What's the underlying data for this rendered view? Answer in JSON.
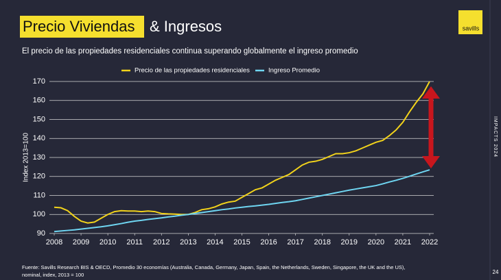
{
  "slide": {
    "title_highlight": "Precio Viviendas",
    "title_rest": "& Ingresos",
    "logo": "savills",
    "side_label": "IMPACTS 2024",
    "page_number": "24",
    "source": [
      "Fuente: Savills Research BIS & OECD, Promedio 30 economías (Australia, Canada, Germany, Japan, Spain, the Netherlands, Sweden, Singapore, the UK and the US),",
      "nominal, index, 2013 = 100"
    ]
  },
  "chart_data": {
    "type": "line",
    "subtitle": "El precio de las propiedades residenciales continua superando globalmente el ingreso promedio",
    "y_label": "Index 2013=100",
    "x": [
      2008,
      2008.25,
      2008.5,
      2008.75,
      2009,
      2009.25,
      2009.5,
      2009.75,
      2010,
      2010.25,
      2010.5,
      2010.75,
      2011,
      2011.25,
      2011.5,
      2011.75,
      2012,
      2012.25,
      2012.5,
      2012.75,
      2013,
      2013.25,
      2013.5,
      2013.75,
      2014,
      2014.25,
      2014.5,
      2014.75,
      2015,
      2015.25,
      2015.5,
      2015.75,
      2016,
      2016.25,
      2016.5,
      2016.75,
      2017,
      2017.25,
      2017.5,
      2017.75,
      2018,
      2018.25,
      2018.5,
      2018.75,
      2019,
      2019.25,
      2019.5,
      2019.75,
      2020,
      2020.25,
      2020.5,
      2020.75,
      2021,
      2021.25,
      2021.5,
      2021.75,
      2022
    ],
    "series": [
      {
        "name": "Precio de las propiedades residenciales",
        "color": "#f2d31b",
        "values": [
          103.8,
          103.5,
          102,
          99,
          96.5,
          95.5,
          96,
          98,
          100,
          101.5,
          102,
          101.8,
          101.8,
          101.5,
          101.8,
          101.5,
          100.5,
          100.3,
          100.2,
          100,
          100,
          101,
          102.5,
          103,
          104,
          105.5,
          106.5,
          107,
          109,
          111,
          113,
          114,
          116,
          118,
          119.5,
          121,
          123.5,
          126,
          127.5,
          128,
          129,
          130.5,
          132,
          132,
          132.5,
          133.5,
          135,
          136.5,
          138,
          139,
          141.5,
          144.5,
          148.5,
          154,
          159,
          163.5,
          170
        ]
      },
      {
        "name": "Ingreso Promedio",
        "color": "#6fd6f2",
        "values": [
          91,
          91.3,
          91.6,
          91.9,
          92.3,
          92.7,
          93.1,
          93.5,
          94,
          94.6,
          95.2,
          95.9,
          96.5,
          96.9,
          97.4,
          97.8,
          98.2,
          98.7,
          99.1,
          99.6,
          100,
          100.5,
          101,
          101.5,
          102,
          102.5,
          102.9,
          103.4,
          103.8,
          104.2,
          104.5,
          104.9,
          105.3,
          105.8,
          106.3,
          106.7,
          107.2,
          107.9,
          108.6,
          109.3,
          110,
          110.7,
          111.4,
          112.1,
          112.8,
          113.4,
          114,
          114.6,
          115.2,
          116.1,
          117.1,
          118,
          119,
          120.1,
          121.3,
          122.4,
          123.5
        ]
      }
    ],
    "xlim": [
      2008,
      2022
    ],
    "xticks": [
      2008,
      2009,
      2010,
      2011,
      2012,
      2013,
      2014,
      2015,
      2016,
      2017,
      2018,
      2019,
      2020,
      2021,
      2022
    ],
    "ylim": [
      90,
      170
    ],
    "yticks": [
      90,
      100,
      110,
      120,
      130,
      140,
      150,
      160,
      170
    ],
    "grid": true,
    "legend": "top"
  }
}
